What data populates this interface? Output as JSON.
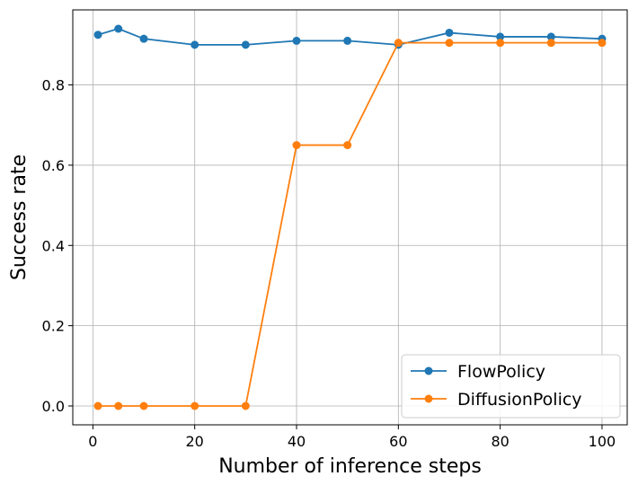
{
  "chart_data": {
    "type": "line",
    "title": "",
    "xlabel": "Number of inference steps",
    "ylabel": "Success rate",
    "xlim": [
      -3.95,
      104.95
    ],
    "ylim": [
      -0.047,
      0.987
    ],
    "xticks": [
      0,
      20,
      40,
      60,
      80,
      100
    ],
    "xtick_labels": [
      "0",
      "20",
      "40",
      "60",
      "80",
      "100"
    ],
    "yticks": [
      0.0,
      0.2,
      0.4,
      0.6,
      0.8
    ],
    "ytick_labels": [
      "0.0",
      "0.2",
      "0.4",
      "0.6",
      "0.8"
    ],
    "grid": true,
    "legend_position": "bottom-right",
    "series": [
      {
        "name": "FlowPolicy",
        "color": "#1f77b4",
        "x": [
          1,
          5,
          10,
          20,
          30,
          40,
          50,
          60,
          70,
          80,
          90,
          100
        ],
        "y": [
          0.925,
          0.94,
          0.915,
          0.9,
          0.9,
          0.91,
          0.91,
          0.9,
          0.93,
          0.92,
          0.92,
          0.915
        ]
      },
      {
        "name": "DiffusionPolicy",
        "color": "#ff7f0e",
        "x": [
          1,
          5,
          10,
          20,
          30,
          40,
          50,
          60,
          70,
          80,
          90,
          100
        ],
        "y": [
          0.0,
          0.0,
          0.0,
          0.0,
          0.0,
          0.65,
          0.65,
          0.905,
          0.905,
          0.905,
          0.905,
          0.905
        ]
      }
    ]
  }
}
